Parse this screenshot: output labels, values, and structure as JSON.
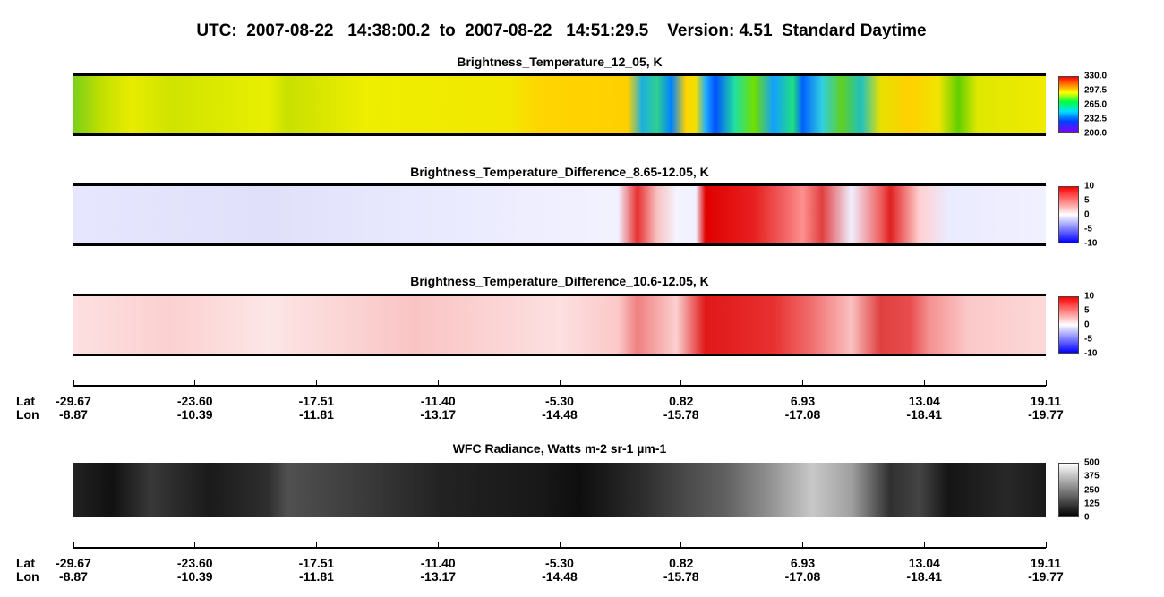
{
  "header": {
    "title": "UTC:  2007-08-22   14:38:00.2  to  2007-08-22   14:51:29.5    Version: 4.51  Standard Daytime"
  },
  "panels": [
    {
      "title": "Brightness_Temperature_12_05, K",
      "colorbar": [
        "330.0",
        "297.5",
        "265.0",
        "232.5",
        "200.0"
      ]
    },
    {
      "title": "Brightness_Temperature_Difference_8.65-12.05, K",
      "colorbar": [
        "10",
        "5",
        "0",
        "-5",
        "-10"
      ]
    },
    {
      "title": "Brightness_Temperature_Difference_10.6-12.05, K",
      "colorbar": [
        "10",
        "5",
        "0",
        "-5",
        "-10"
      ]
    },
    {
      "title": "WFC Radiance, Watts m-2 sr-1 µm-1",
      "colorbar": [
        "500",
        "375",
        "250",
        "125",
        "0"
      ]
    }
  ],
  "axes": [
    {
      "lat_label": "Lat",
      "lon_label": "Lon",
      "lat": [
        "-29.67",
        "-23.60",
        "-17.51",
        "-11.40",
        "-5.30",
        "0.82",
        "6.93",
        "13.04",
        "19.11"
      ],
      "lon": [
        "-8.87",
        "-10.39",
        "-11.81",
        "-13.17",
        "-14.48",
        "-15.78",
        "-17.08",
        "-18.41",
        "-19.77"
      ]
    },
    {
      "lat_label": "Lat",
      "lon_label": "Lon",
      "lat": [
        "-29.67",
        "-23.60",
        "-17.51",
        "-11.40",
        "-5.30",
        "0.82",
        "6.93",
        "13.04",
        "19.11"
      ],
      "lon": [
        "-8.87",
        "-10.39",
        "-11.81",
        "-13.17",
        "-14.48",
        "-15.78",
        "-17.08",
        "-18.41",
        "-19.77"
      ]
    }
  ]
}
